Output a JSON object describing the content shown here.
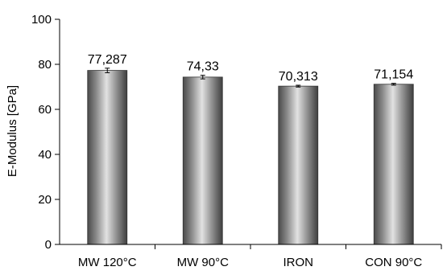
{
  "chart_data": {
    "type": "bar",
    "title": "",
    "xlabel": "",
    "ylabel": "E-Modulus [GPa]",
    "categories": [
      "MW 120°C",
      "MW 90°C",
      "IRON",
      "CON 90°C"
    ],
    "values": [
      77.287,
      74.33,
      70.313,
      71.154
    ],
    "value_labels": [
      "77,287",
      "74,33",
      "70,313",
      "71,154"
    ],
    "error_bars": [
      1.0,
      0.8,
      0.4,
      0.4
    ],
    "ylim": [
      0,
      100
    ],
    "yticks": [
      0,
      20,
      40,
      60,
      80,
      100
    ],
    "ytick_labels": [
      "0",
      "20",
      "40",
      "60",
      "80",
      "100"
    ],
    "grid": false,
    "legend": "none",
    "bar_style": "gray cylindrical gradient"
  }
}
